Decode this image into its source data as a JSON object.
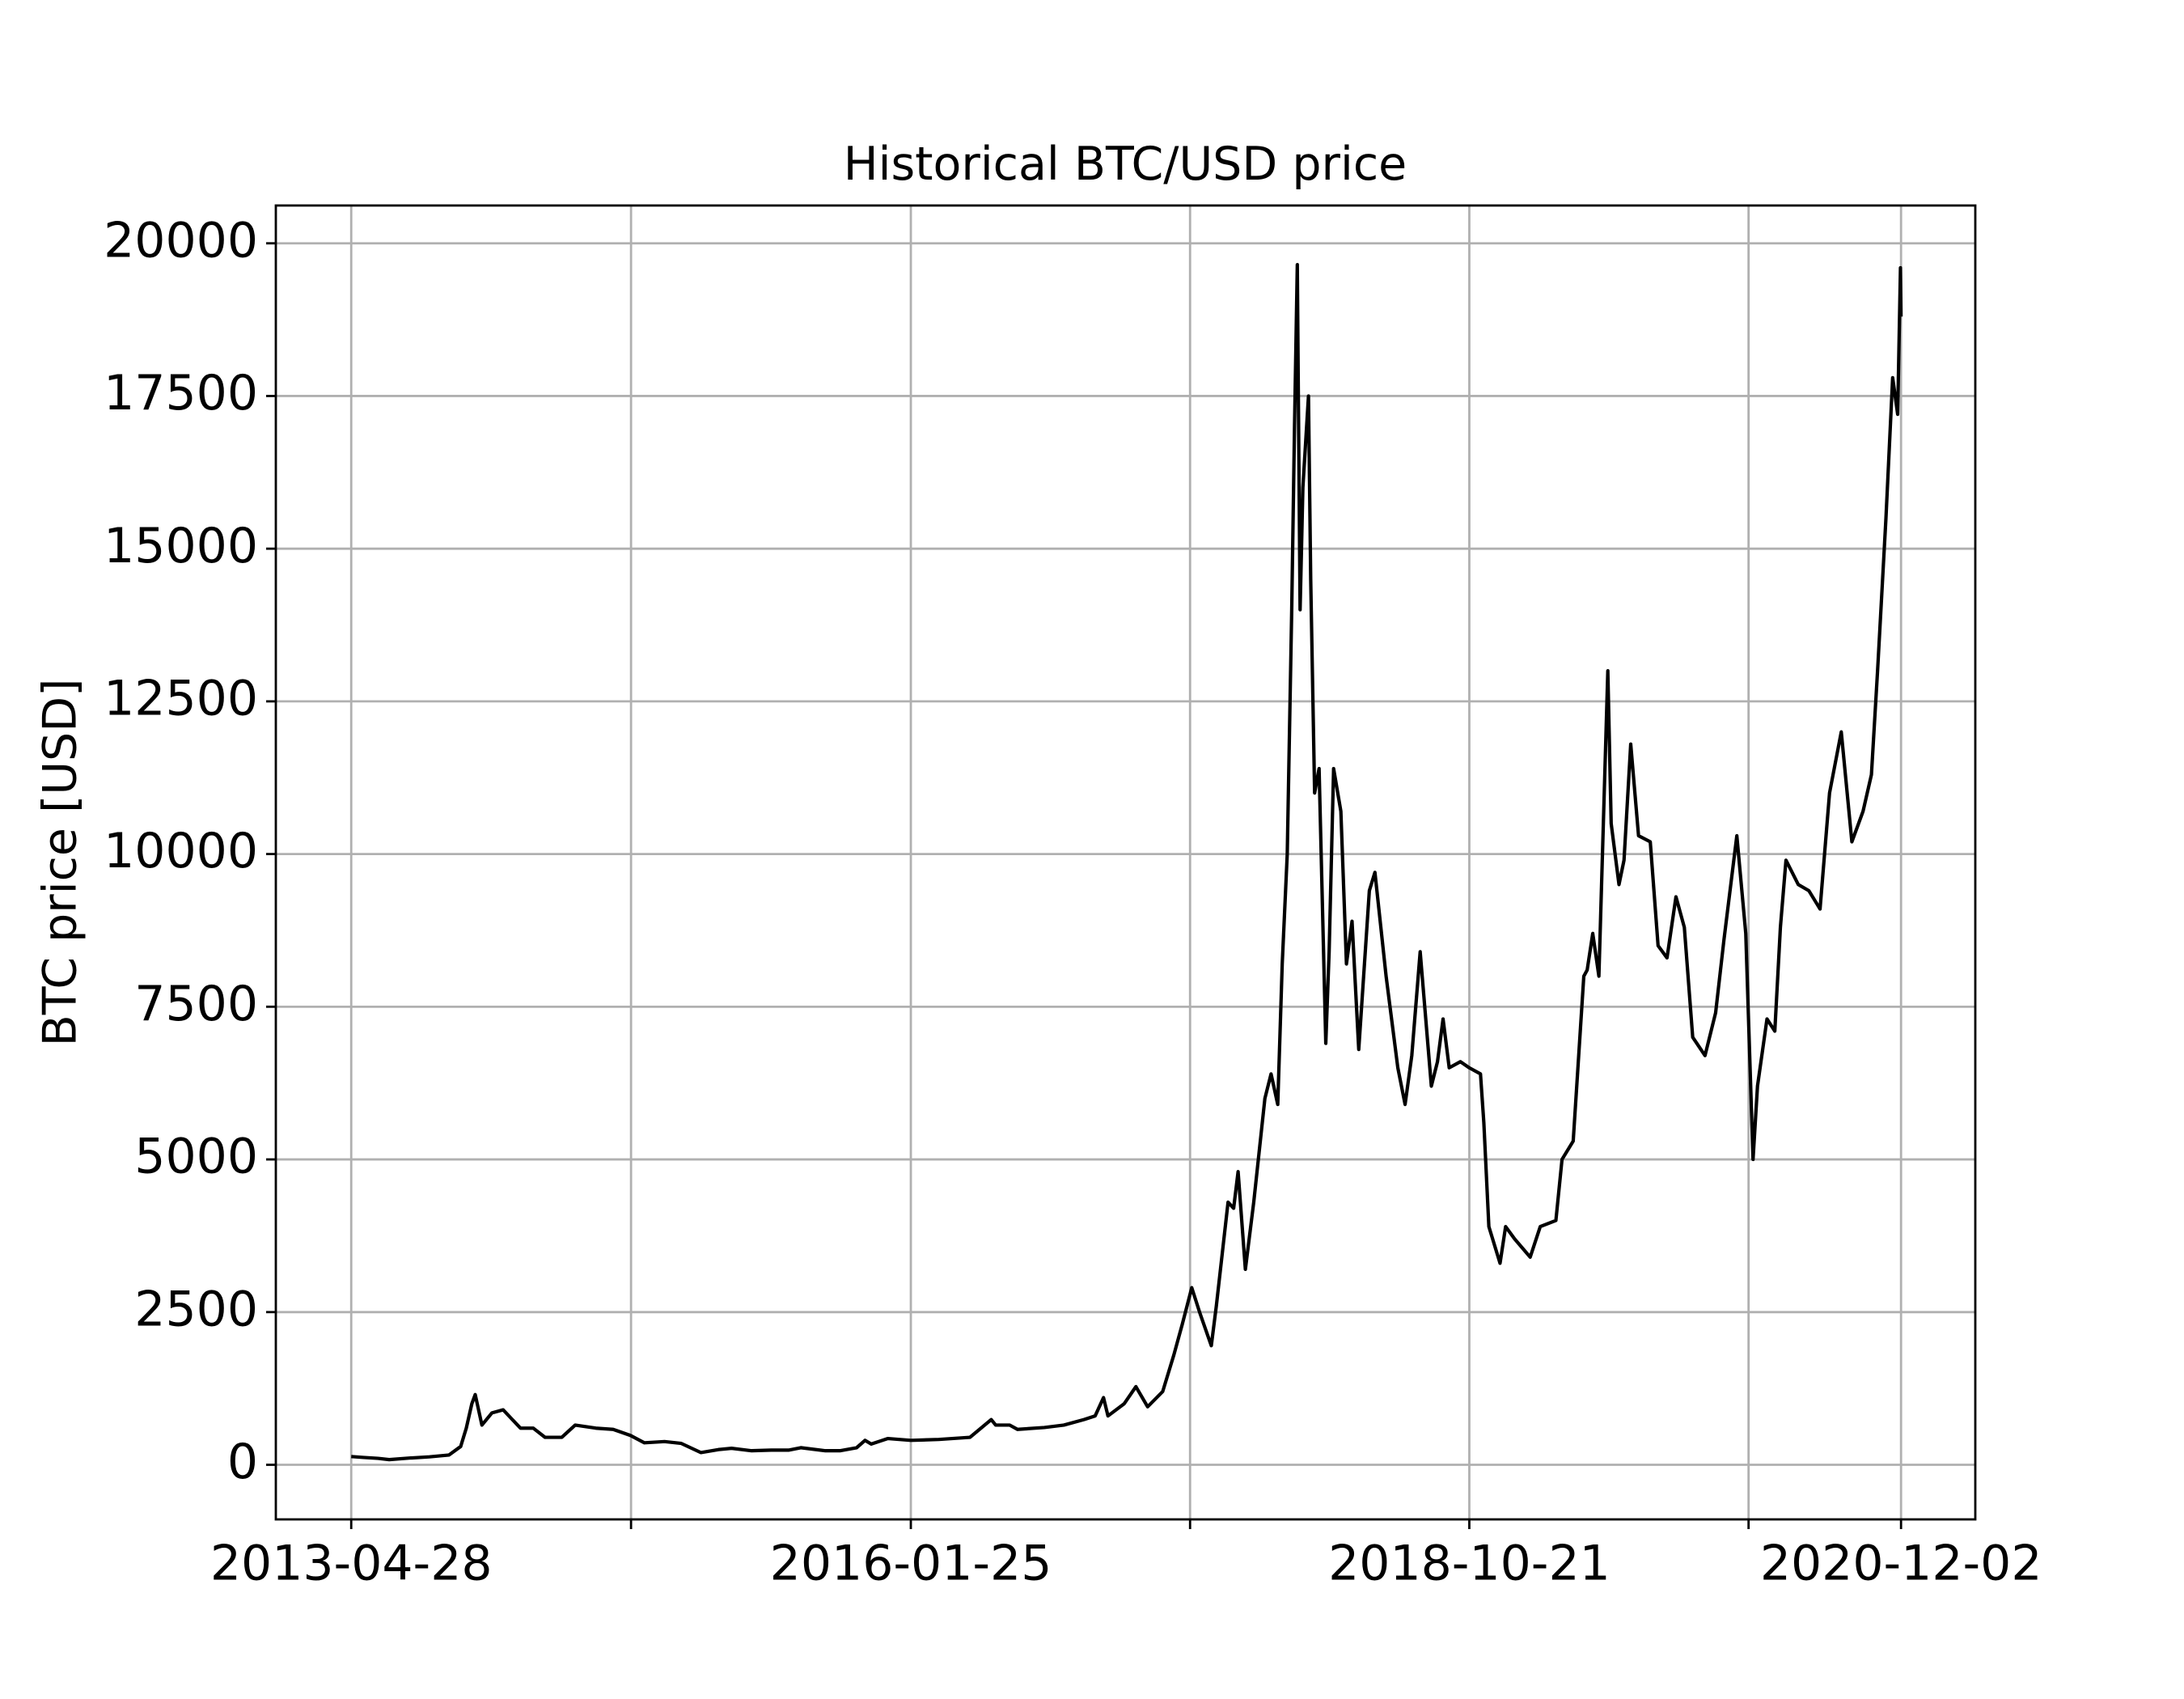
{
  "chart_data": {
    "type": "line",
    "title": "Historical BTC/USD price",
    "y_label": "BTC price [USD]",
    "x": [
      "2013-04-28",
      "2013-05-20",
      "2013-06-15",
      "2013-07-05",
      "2013-08-10",
      "2013-09-15",
      "2013-10-20",
      "2013-11-10",
      "2013-11-20",
      "2013-11-30",
      "2013-12-06",
      "2013-12-18",
      "2014-01-05",
      "2014-01-25",
      "2014-02-25",
      "2014-03-20",
      "2014-04-10",
      "2014-05-10",
      "2014-06-03",
      "2014-07-10",
      "2014-08-10",
      "2014-09-10",
      "2014-10-05",
      "2014-11-10",
      "2014-12-10",
      "2015-01-14",
      "2015-02-15",
      "2015-03-10",
      "2015-04-15",
      "2015-05-20",
      "2015-06-20",
      "2015-07-12",
      "2015-08-25",
      "2015-09-20",
      "2015-10-20",
      "2015-11-04",
      "2015-11-15",
      "2015-12-15",
      "2016-01-25",
      "2016-03-15",
      "2016-05-10",
      "2016-06-17",
      "2016-06-25",
      "2016-07-20",
      "2016-08-03",
      "2016-09-20",
      "2016-10-25",
      "2016-11-30",
      "2016-12-20",
      "2017-01-04",
      "2017-01-12",
      "2017-02-10",
      "2017-03-03",
      "2017-03-24",
      "2017-04-20",
      "2017-05-10",
      "2017-05-25",
      "2017-06-11",
      "2017-06-25",
      "2017-07-16",
      "2017-07-25",
      "2017-08-15",
      "2017-08-25",
      "2017-09-02",
      "2017-09-15",
      "2017-09-30",
      "2017-10-20",
      "2017-10-31",
      "2017-11-12",
      "2017-11-20",
      "2017-11-29",
      "2017-12-07",
      "2017-12-12",
      "2017-12-17",
      "2017-12-22",
      "2017-12-27",
      "2018-01-06",
      "2018-01-10",
      "2018-01-17",
      "2018-01-25",
      "2018-02-06",
      "2018-02-12",
      "2018-02-20",
      "2018-03-05",
      "2018-03-15",
      "2018-03-25",
      "2018-04-06",
      "2018-04-25",
      "2018-05-05",
      "2018-05-25",
      "2018-06-15",
      "2018-06-28",
      "2018-07-10",
      "2018-07-25",
      "2018-08-14",
      "2018-08-25",
      "2018-09-04",
      "2018-09-15",
      "2018-10-05",
      "2018-10-21",
      "2018-11-10",
      "2018-11-16",
      "2018-11-25",
      "2018-12-15",
      "2018-12-25",
      "2019-01-10",
      "2019-02-07",
      "2019-02-25",
      "2019-03-25",
      "2019-04-05",
      "2019-04-25",
      "2019-05-14",
      "2019-05-20",
      "2019-05-30",
      "2019-06-10",
      "2019-06-26",
      "2019-07-02",
      "2019-07-16",
      "2019-07-25",
      "2019-08-06",
      "2019-08-20",
      "2019-09-10",
      "2019-09-24",
      "2019-10-10",
      "2019-10-26",
      "2019-11-10",
      "2019-11-25",
      "2019-12-17",
      "2020-01-05",
      "2020-01-20",
      "2020-02-12",
      "2020-02-28",
      "2020-03-12",
      "2020-03-20",
      "2020-04-06",
      "2020-04-20",
      "2020-04-30",
      "2020-05-10",
      "2020-06-01",
      "2020-06-20",
      "2020-07-10",
      "2020-07-27",
      "2020-08-17",
      "2020-09-05",
      "2020-09-25",
      "2020-10-10",
      "2020-10-21",
      "2020-11-05",
      "2020-11-17",
      "2020-11-26",
      "2020-12-01",
      "2020-12-02"
    ],
    "series": [
      {
        "name": "BTC/USD",
        "color": "#000000",
        "values": [
          135,
          120,
          105,
          85,
          110,
          130,
          160,
          300,
          600,
          1000,
          1150,
          650,
          850,
          900,
          600,
          600,
          450,
          450,
          650,
          600,
          580,
          480,
          360,
          380,
          350,
          200,
          250,
          270,
          230,
          240,
          240,
          280,
          230,
          230,
          280,
          400,
          340,
          430,
          400,
          415,
          450,
          740,
          650,
          650,
          580,
          610,
          650,
          740,
          800,
          1100,
          800,
          1000,
          1280,
          950,
          1200,
          1800,
          2300,
          2900,
          2500,
          1950,
          2600,
          4300,
          4200,
          4800,
          3200,
          4300,
          6000,
          6400,
          5900,
          8200,
          10000,
          14000,
          17000,
          19650,
          14000,
          16000,
          17500,
          14500,
          11000,
          11400,
          6900,
          8400,
          11400,
          10700,
          8200,
          8900,
          6800,
          9400,
          9700,
          8000,
          6500,
          5900,
          6700,
          8400,
          6200,
          6600,
          7300,
          6500,
          6600,
          6500,
          6400,
          5600,
          3900,
          3300,
          3900,
          3700,
          3400,
          3900,
          4000,
          5000,
          5300,
          8000,
          8100,
          8700,
          8000,
          13000,
          10500,
          9500,
          9900,
          11800,
          10300,
          10200,
          8500,
          8300,
          9300,
          8800,
          7000,
          6700,
          7400,
          8600,
          10300,
          8700,
          5000,
          6200,
          7300,
          7100,
          8800,
          9900,
          9500,
          9400,
          9100,
          11000,
          12000,
          10200,
          10700,
          11300,
          13000,
          15500,
          17800,
          17200,
          19600,
          18800
        ]
      }
    ],
    "xlim": [
      "2012-12-14",
      "2021-04-14"
    ],
    "ylim": [
      -894,
      20619
    ],
    "xticks": [
      "2013-04-28",
      {
        "value": "2014-09-11",
        "label": null
      },
      "2016-01-25",
      {
        "value": "2017-06-08",
        "label": null
      },
      "2018-10-21",
      {
        "value": "2020-03-04",
        "label": null
      },
      "2020-12-02"
    ],
    "yticks": [
      0,
      2500,
      5000,
      7500,
      10000,
      12500,
      15000,
      17500,
      20000
    ],
    "grid": true
  }
}
